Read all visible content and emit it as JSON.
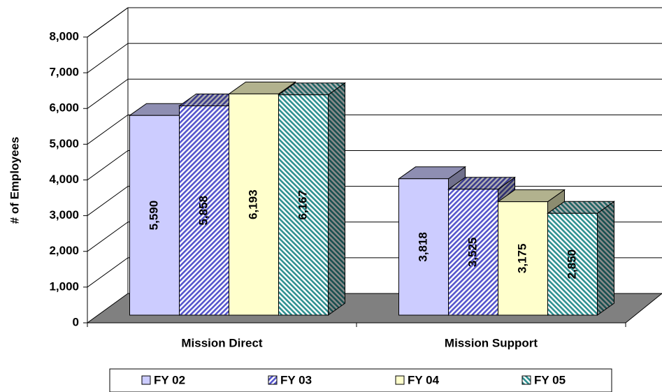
{
  "chart_data": {
    "type": "bar3d",
    "categories": [
      "Mission Direct",
      "Mission Support"
    ],
    "y_label": "# of Employees",
    "ylim": [
      0,
      8000
    ],
    "yticks": [
      0,
      {
        "value": 1000,
        "label": "1,000"
      },
      {
        "value": 2000,
        "label": "2,000"
      },
      {
        "value": 3000,
        "label": "3,000"
      },
      {
        "value": 4000,
        "label": "4,000"
      },
      {
        "value": 5000,
        "label": "5,000"
      },
      {
        "value": 6000,
        "label": "6,000"
      },
      {
        "value": 7000,
        "label": "7,000"
      },
      {
        "value": 8000,
        "label": "8,000"
      }
    ],
    "grid": true,
    "legend": "bottom",
    "series": [
      {
        "name": "FY 02",
        "color": "#ccccff",
        "values": [
          5590,
          3818
        ],
        "value_labels": [
          "5,590",
          "3,818"
        ]
      },
      {
        "name": "FY 03",
        "color": "#5555cc",
        "pattern": "hatch-down",
        "values": [
          5858,
          3525
        ],
        "value_labels": [
          "5,858",
          "3,525"
        ]
      },
      {
        "name": "FY 04",
        "color": "#ffffcc",
        "values": [
          6193,
          3175
        ],
        "value_labels": [
          "6,193",
          "3,175"
        ]
      },
      {
        "name": "FY 05",
        "color": "#2e9090",
        "pattern": "hatch-up",
        "values": [
          6167,
          2850
        ],
        "value_labels": [
          "6,167",
          "2,850"
        ]
      }
    ]
  }
}
